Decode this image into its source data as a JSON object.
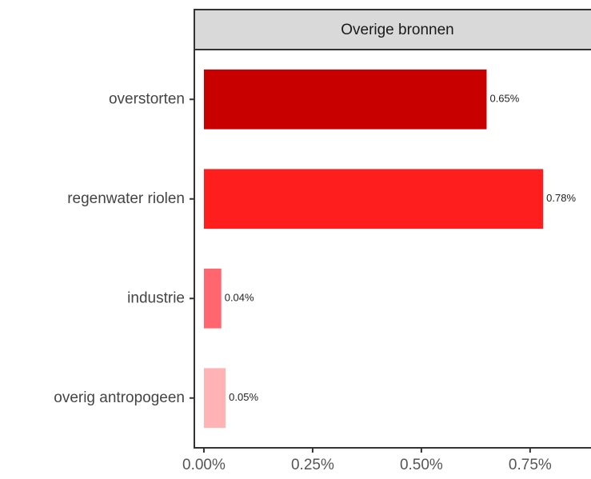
{
  "chart_data": {
    "type": "bar",
    "orientation": "horizontal",
    "title": "Overige bronnen",
    "categories": [
      "overstorten",
      "regenwater riolen",
      "industrie",
      "overig antropogeen"
    ],
    "values": [
      0.65,
      0.78,
      0.04,
      0.05
    ],
    "value_labels": [
      "0.65%",
      "0.78%",
      "0.04%",
      "0.05%"
    ],
    "colors": [
      "#c80000",
      "#ff1e1e",
      "#ff6670",
      "#ffb3b5"
    ],
    "xlim": [
      -0.022,
      0.89
    ],
    "xticks": [
      {
        "value": 0,
        "label": "0.00%"
      },
      {
        "value": 0.25,
        "label": "0.25%"
      },
      {
        "value": 0.5,
        "label": "0.50%"
      },
      {
        "value": 0.75,
        "label": "0.75%"
      }
    ],
    "grid": false
  }
}
